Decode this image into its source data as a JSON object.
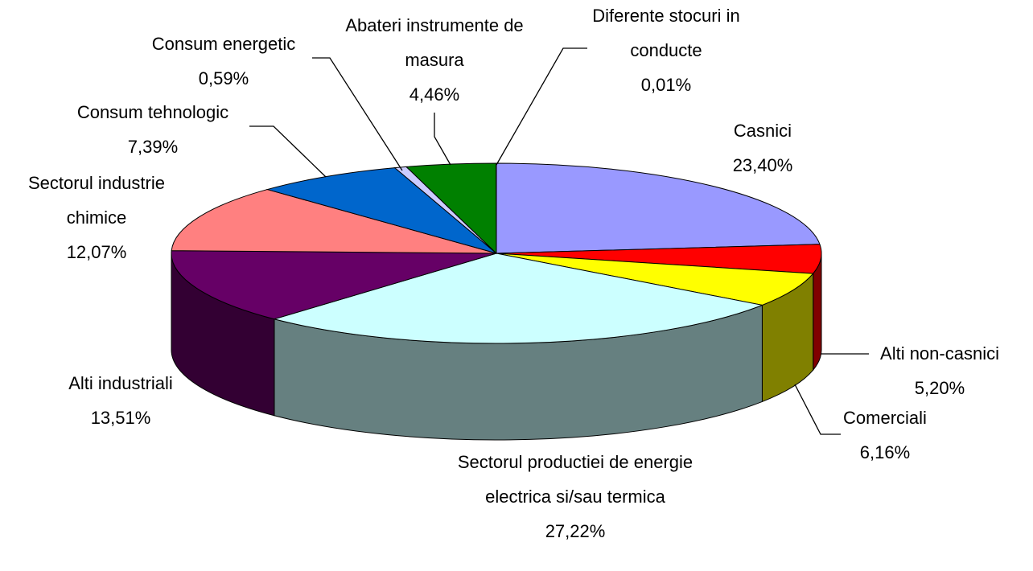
{
  "chart_data": {
    "type": "pie3d",
    "categories": [
      "Casnici",
      "Alti non-casnici",
      "Comerciali",
      "Sectorul productiei de energie electrica si/sau termica",
      "Alti industriali",
      "Sectorul industrie chimice",
      "Consum tehnologic",
      "Consum energetic",
      "Abateri instrumente de masura",
      "Diferente stocuri in conducte"
    ],
    "values": [
      23.4,
      5.2,
      6.16,
      27.22,
      13.51,
      12.07,
      7.39,
      0.59,
      4.46,
      0.01
    ],
    "value_labels": [
      "23,40%",
      "5,20%",
      "6,16%",
      "27,22%",
      "13,51%",
      "12,07%",
      "7,39%",
      "0,59%",
      "4,46%",
      "0,01%"
    ],
    "colors": [
      "#9999ff",
      "#ff0000",
      "#ffff00",
      "#ccffff",
      "#660066",
      "#ff8080",
      "#0066cc",
      "#ccccff",
      "#008000",
      "#ffffcc"
    ]
  }
}
